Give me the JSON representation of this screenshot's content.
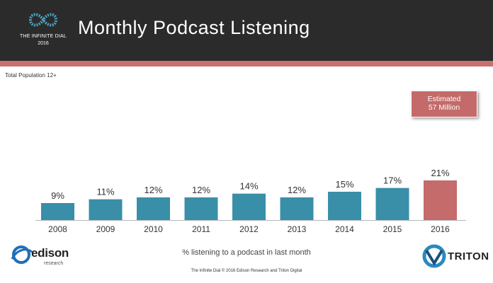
{
  "header": {
    "logo_line1": "THE INFINITE DIAL",
    "logo_line2": "2016",
    "title": "Monthly Podcast Listening",
    "bg_color": "#2b2b2b",
    "rule_color": "#c87070"
  },
  "population_label": "Total Population 12+",
  "callout": {
    "line1": "Estimated",
    "line2": "57 Million"
  },
  "chart_data": {
    "type": "bar",
    "title": "Monthly Podcast Listening",
    "xlabel": "% listening to a podcast in last month",
    "ylabel": "",
    "categories": [
      "2008",
      "2009",
      "2010",
      "2011",
      "2012",
      "2013",
      "2014",
      "2015",
      "2016"
    ],
    "values": [
      9,
      11,
      12,
      12,
      14,
      12,
      15,
      17,
      21
    ],
    "labels": [
      "9%",
      "11%",
      "12%",
      "12%",
      "14%",
      "12%",
      "15%",
      "17%",
      "21%"
    ],
    "ylim": [
      0,
      21
    ],
    "grid": false,
    "colors": [
      "#3a8fa8",
      "#3a8fa8",
      "#3a8fa8",
      "#3a8fa8",
      "#3a8fa8",
      "#3a8fa8",
      "#3a8fa8",
      "#3a8fa8",
      "#c56b6b"
    ]
  },
  "caption": "% listening to a podcast in last month",
  "logos": {
    "edison_word": "edison",
    "edison_sub": "research",
    "triton_word": "TRITON"
  },
  "footer": "The Infinite Dial  © 2016 Edison Research and Triton Digital"
}
